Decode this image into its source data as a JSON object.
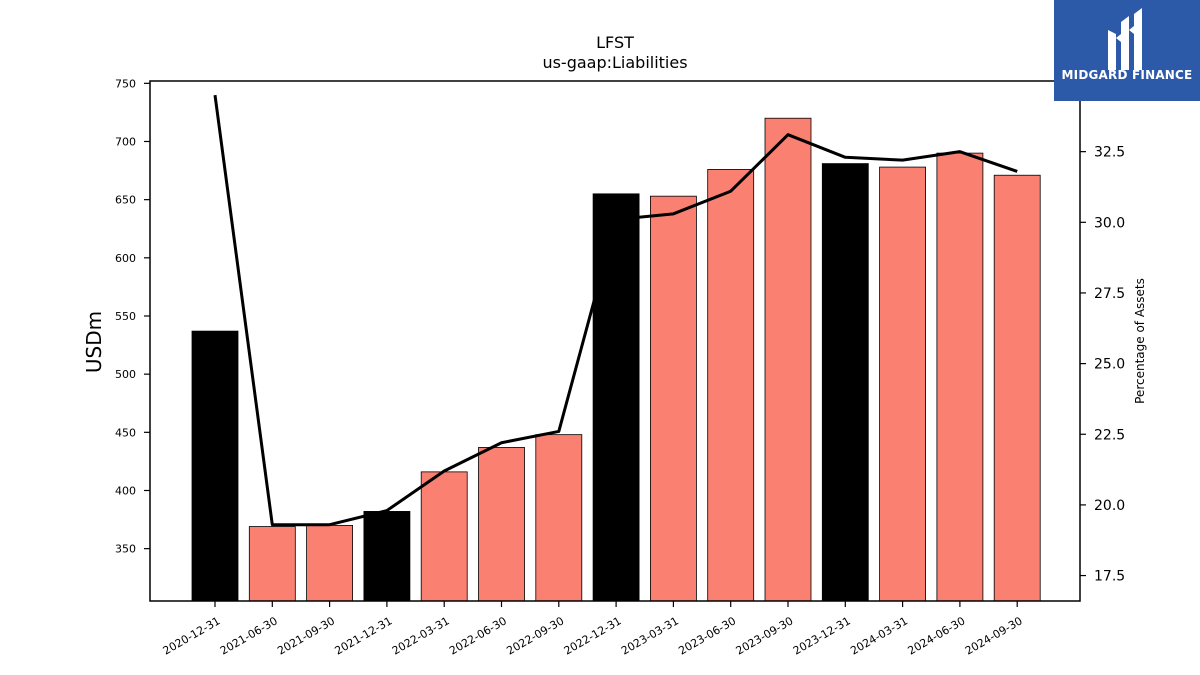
{
  "chart_data": {
    "type": "bar",
    "title": "LFST",
    "subtitle": "us-gaap:Liabilities",
    "ylabel": "USDm",
    "y2label": "Percentage of Assets",
    "categories": [
      "2020-12-31",
      "2021-06-30",
      "2021-09-30",
      "2021-12-31",
      "2022-03-31",
      "2022-06-30",
      "2022-09-30",
      "2022-12-31",
      "2023-03-31",
      "2023-06-30",
      "2023-09-30",
      "2023-12-31",
      "2024-03-31",
      "2024-06-30",
      "2024-09-30"
    ],
    "series": [
      {
        "type": "bar",
        "axis": "left",
        "values": [
          537,
          369,
          370,
          382,
          416,
          437,
          448,
          655,
          653,
          676,
          720,
          681,
          678,
          690,
          671
        ],
        "colors": [
          "#000000",
          "#fa8072",
          "#fa8072",
          "#000000",
          "#fa8072",
          "#fa8072",
          "#fa8072",
          "#000000",
          "#fa8072",
          "#fa8072",
          "#fa8072",
          "#000000",
          "#fa8072",
          "#fa8072",
          "#fa8072"
        ]
      },
      {
        "type": "line",
        "axis": "right",
        "color": "#000000",
        "values": [
          34.5,
          19.3,
          19.3,
          19.8,
          21.2,
          22.2,
          22.6,
          30.1,
          30.3,
          31.1,
          33.1,
          32.3,
          32.2,
          32.5,
          31.8
        ]
      }
    ],
    "ylim": [
      305,
      752
    ],
    "yticks": [
      350,
      400,
      450,
      500,
      550,
      600,
      650,
      700,
      750
    ],
    "y2lim": [
      16.6,
      35.0
    ],
    "y2ticks": [
      17.5,
      20.0,
      22.5,
      25.0,
      27.5,
      30.0,
      32.5
    ],
    "grid": false,
    "legend": "none"
  },
  "logo": {
    "text": "MIDGARD FINANCE"
  }
}
